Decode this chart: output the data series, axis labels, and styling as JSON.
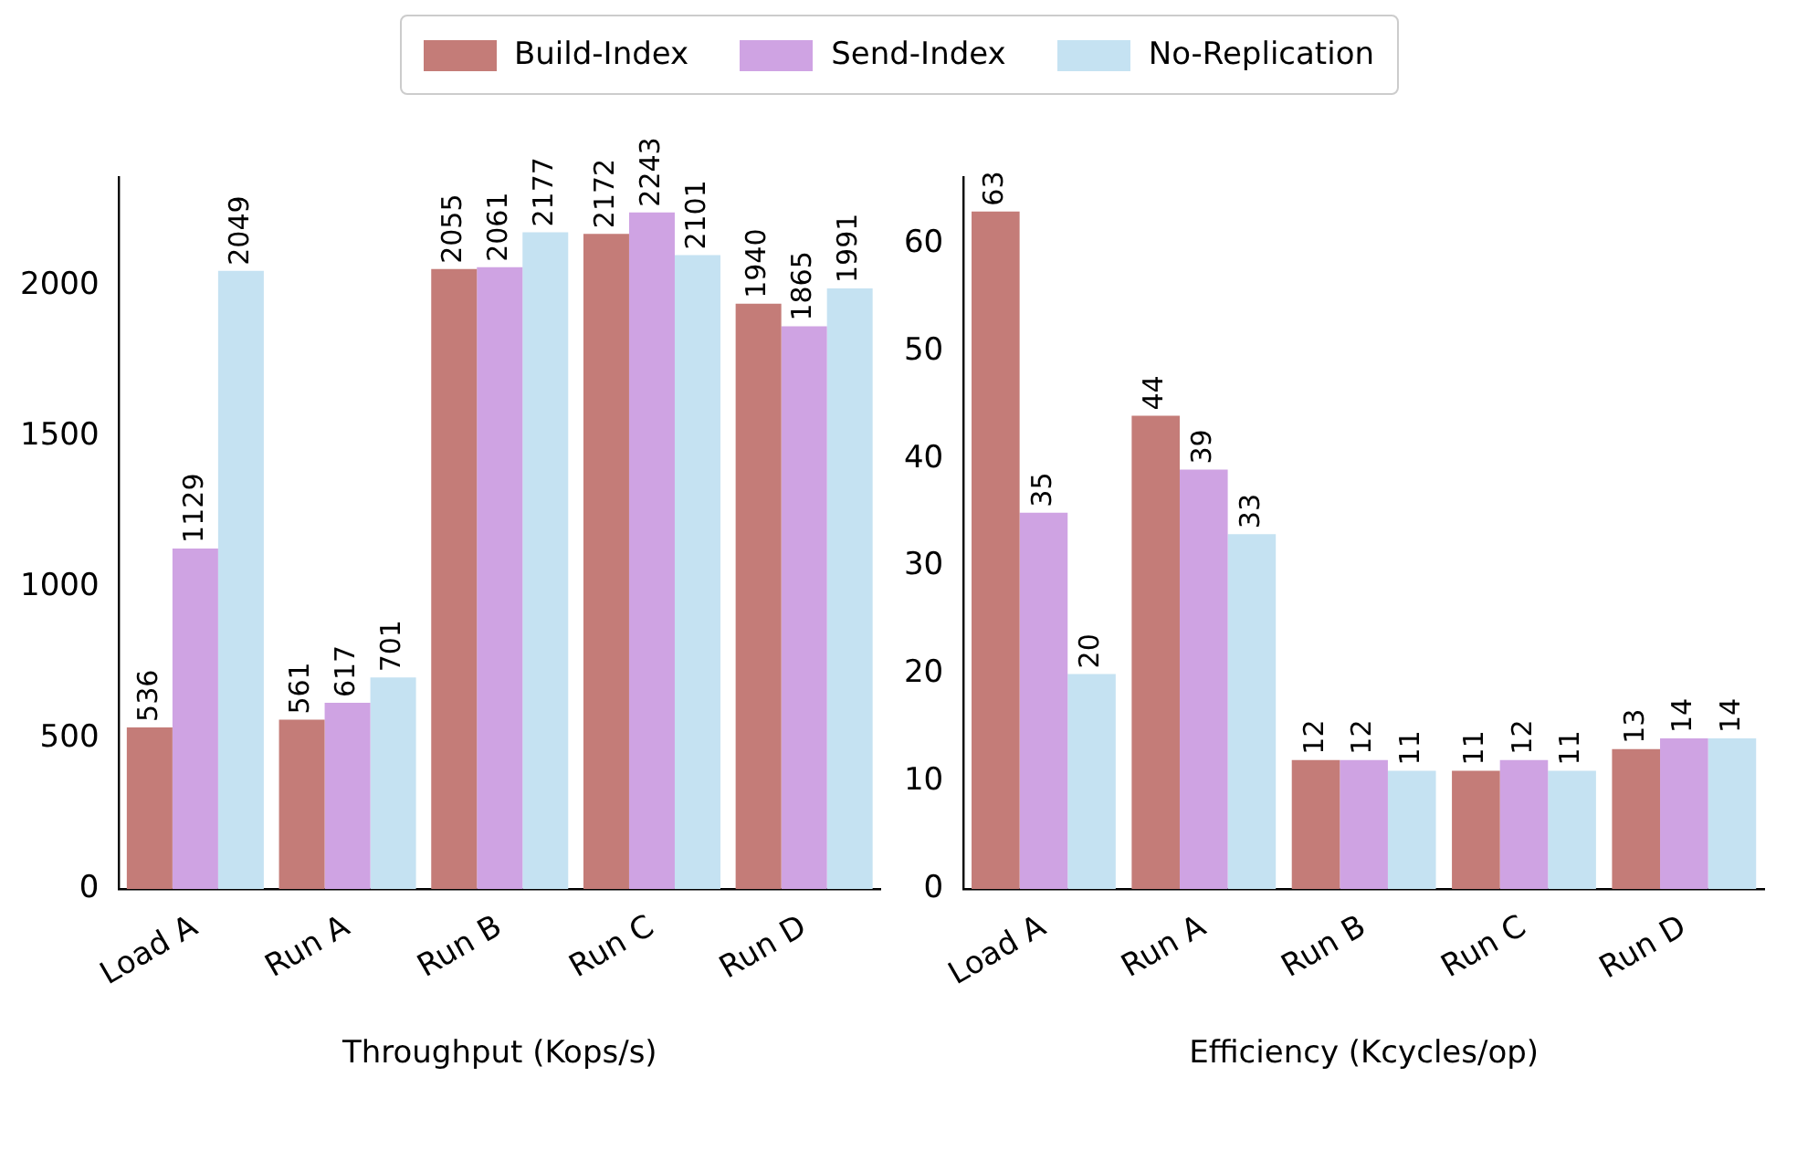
{
  "chart_data": [
    {
      "type": "bar",
      "xlabel": "Throughput (Kops/s)",
      "categories": [
        "Load A",
        "Run A",
        "Run B",
        "Run C",
        "Run D"
      ],
      "ylim": [
        0,
        2360
      ],
      "yticks": [
        0,
        500,
        1000,
        1500,
        2000
      ],
      "grid": false,
      "legend": "top",
      "data_labels": true,
      "series": [
        {
          "name": "Build-Index",
          "color": "#c47c78",
          "values": [
            536,
            561,
            2055,
            2172,
            1940
          ]
        },
        {
          "name": "Send-Index",
          "color": "#cfa3e3",
          "values": [
            1129,
            617,
            2061,
            2243,
            1865
          ]
        },
        {
          "name": "No-Replication",
          "color": "#c5e2f2",
          "values": [
            2049,
            701,
            2177,
            2101,
            1991
          ]
        }
      ]
    },
    {
      "type": "bar",
      "xlabel": "Efficiency (Kcycles/op)",
      "categories": [
        "Load A",
        "Run A",
        "Run B",
        "Run C",
        "Run D"
      ],
      "ylim": [
        0,
        66.2
      ],
      "yticks": [
        0,
        10,
        20,
        30,
        40,
        50,
        60
      ],
      "grid": false,
      "data_labels": true,
      "series": [
        {
          "color": "#c47c78",
          "values": [
            63,
            44,
            12,
            11,
            13
          ]
        },
        {
          "color": "#cfa3e3",
          "values": [
            35,
            39,
            12,
            12,
            14
          ]
        },
        {
          "color": "#c5e2f2",
          "values": [
            20,
            33,
            11,
            11,
            14
          ]
        }
      ]
    }
  ]
}
